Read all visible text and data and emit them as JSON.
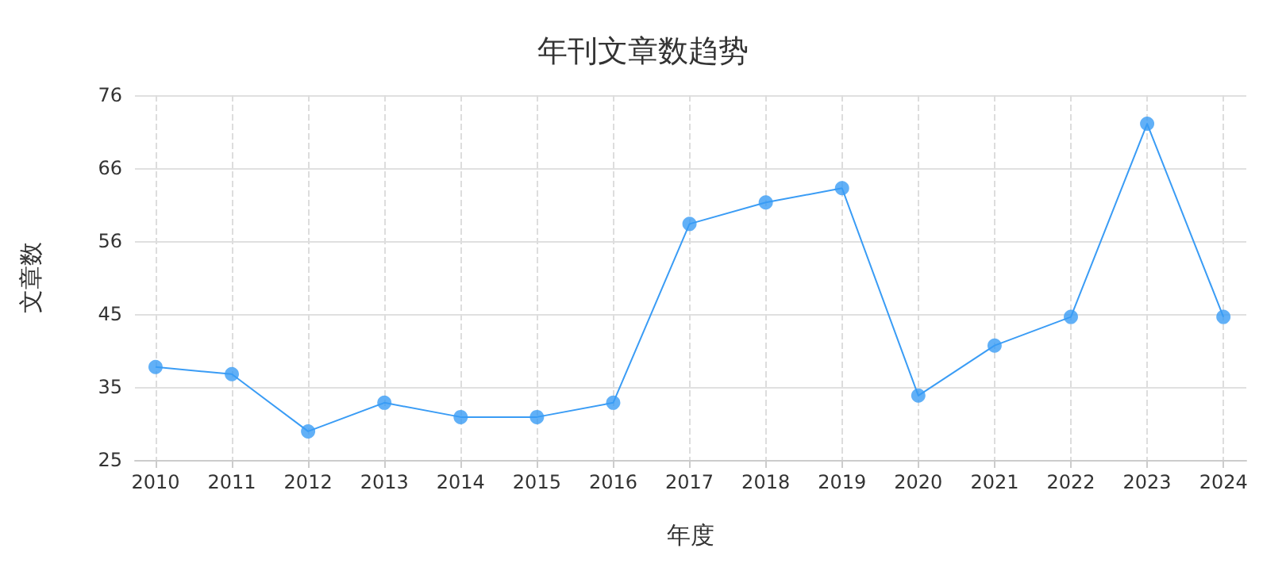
{
  "chart_data": {
    "type": "line",
    "title": "年刊文章数趋势",
    "xlabel": "年度",
    "ylabel": "文章数",
    "x": [
      2010,
      2011,
      2012,
      2013,
      2014,
      2015,
      2016,
      2017,
      2018,
      2019,
      2020,
      2021,
      2022,
      2023,
      2024
    ],
    "series": [
      {
        "color": "#3a9cf5",
        "values": [
          38,
          37,
          29,
          33,
          31,
          31,
          33,
          58,
          61,
          63,
          34,
          41,
          45,
          72,
          45
        ]
      }
    ],
    "xlim": [
      2009.73,
      2024.3
    ],
    "xticks": [
      2010,
      2011,
      2012,
      2013,
      2014,
      2015,
      2016,
      2017,
      2018,
      2019,
      2020,
      2021,
      2022,
      2023,
      2024
    ],
    "ylim": [
      25,
      76
    ],
    "yticks": [
      25,
      {
        "value": 35.2,
        "label": "35"
      },
      {
        "value": 45.4,
        "label": "45"
      },
      {
        "value": 55.6,
        "label": "56"
      },
      {
        "value": 65.8,
        "label": "66"
      },
      76
    ],
    "grid": true,
    "marker": "circle",
    "line_style": "solid"
  }
}
